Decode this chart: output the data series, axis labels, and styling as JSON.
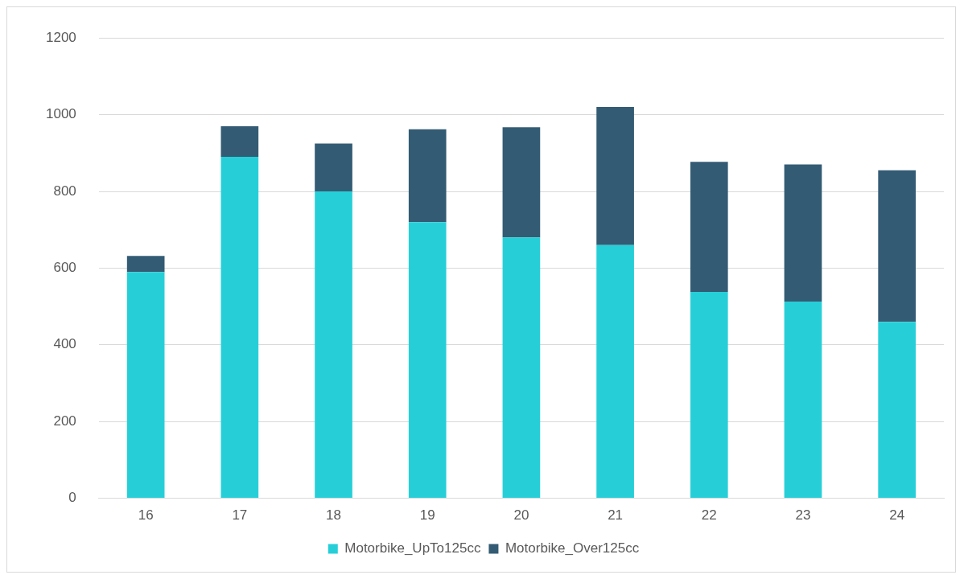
{
  "chart_data": {
    "type": "bar",
    "stacked": true,
    "categories": [
      "16",
      "17",
      "18",
      "19",
      "20",
      "21",
      "22",
      "23",
      "24"
    ],
    "series": [
      {
        "name": "Motorbike_UpTo125cc",
        "color": "#26cfd8",
        "values": [
          590,
          890,
          800,
          720,
          680,
          660,
          538,
          513,
          460
        ]
      },
      {
        "name": "Motorbike_Over125cc",
        "color": "#335b74",
        "values": [
          42,
          80,
          125,
          242,
          287,
          360,
          339,
          357,
          395
        ]
      }
    ],
    "ylim": [
      0,
      1200
    ],
    "yticks": [
      0,
      200,
      400,
      600,
      800,
      1000,
      1200
    ],
    "grid": "y",
    "legend": "bottom"
  }
}
